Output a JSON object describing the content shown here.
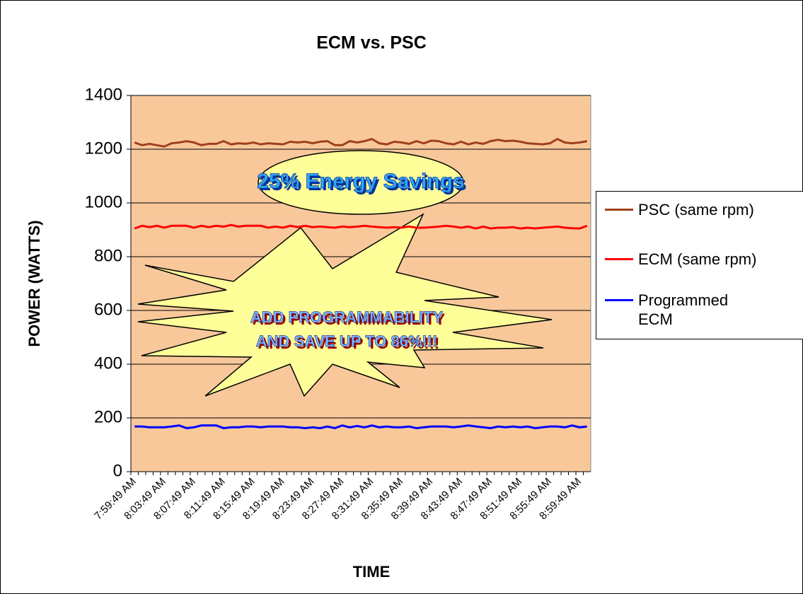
{
  "chart_data": {
    "type": "line",
    "title": "ECM vs. PSC",
    "x_label": "TIME",
    "y_label": "POWER (WATTS)",
    "categories": [
      "7:59:49 AM",
      null,
      null,
      null,
      "8:03:49 AM",
      null,
      null,
      null,
      "8:07:49 AM",
      null,
      null,
      null,
      "8:11:49 AM",
      null,
      null,
      null,
      "8:15:49 AM",
      null,
      null,
      null,
      "8:19:49 AM",
      null,
      null,
      null,
      "8:23:49 AM",
      null,
      null,
      null,
      "8:27:49 AM",
      null,
      null,
      null,
      "8:31:49 AM",
      null,
      null,
      null,
      "8:35:49 AM",
      null,
      null,
      null,
      "8:39:49 AM",
      null,
      null,
      null,
      "8:43:49 AM",
      null,
      null,
      null,
      "8:47:49 AM",
      null,
      null,
      null,
      "8:51:49 AM",
      null,
      null,
      null,
      "8:55:49 AM",
      null,
      null,
      null,
      "8:59:49 AM",
      null
    ],
    "series": [
      {
        "name": "PSC (same rpm)",
        "color": "#a0401a",
        "values": [
          1225,
          1215,
          1220,
          1215,
          1210,
          1222,
          1225,
          1230,
          1225,
          1215,
          1220,
          1220,
          1230,
          1218,
          1222,
          1220,
          1225,
          1218,
          1222,
          1220,
          1218,
          1228,
          1225,
          1228,
          1222,
          1228,
          1230,
          1215,
          1215,
          1230,
          1225,
          1230,
          1238,
          1222,
          1218,
          1228,
          1225,
          1220,
          1230,
          1222,
          1232,
          1230,
          1222,
          1218,
          1228,
          1218,
          1225,
          1220,
          1230,
          1235,
          1230,
          1232,
          1228,
          1222,
          1220,
          1218,
          1222,
          1238,
          1225,
          1222,
          1225,
          1230
        ]
      },
      {
        "name": "ECM (same rpm)",
        "color": "#ff0000",
        "values": [
          905,
          915,
          910,
          915,
          908,
          915,
          915,
          915,
          908,
          915,
          910,
          915,
          912,
          918,
          912,
          915,
          915,
          915,
          908,
          912,
          908,
          915,
          910,
          915,
          910,
          912,
          910,
          908,
          912,
          910,
          912,
          915,
          912,
          910,
          908,
          910,
          908,
          912,
          908,
          908,
          910,
          912,
          915,
          912,
          908,
          912,
          905,
          912,
          905,
          908,
          908,
          910,
          905,
          908,
          905,
          908,
          910,
          912,
          908,
          906,
          905,
          915
        ]
      },
      {
        "name": "Programmed ECM",
        "color": "#0000ff",
        "values": [
          168,
          168,
          165,
          165,
          165,
          168,
          172,
          162,
          165,
          172,
          172,
          172,
          162,
          165,
          165,
          168,
          168,
          165,
          168,
          168,
          168,
          165,
          165,
          162,
          165,
          162,
          168,
          162,
          172,
          165,
          170,
          165,
          172,
          165,
          168,
          165,
          165,
          168,
          162,
          165,
          168,
          168,
          168,
          165,
          168,
          172,
          168,
          165,
          162,
          168,
          165,
          168,
          165,
          168,
          162,
          165,
          168,
          168,
          165,
          172,
          165,
          168
        ]
      }
    ],
    "ylim": [
      0,
      1400
    ],
    "yticks": [
      0,
      200,
      400,
      600,
      800,
      1000,
      1200,
      1400
    ],
    "grid": true,
    "annotations": [
      "25% Energy Savings",
      "ADD PROGRAMMABILITY",
      "AND SAVE UP TO 86%!!!"
    ],
    "legend": "right"
  }
}
